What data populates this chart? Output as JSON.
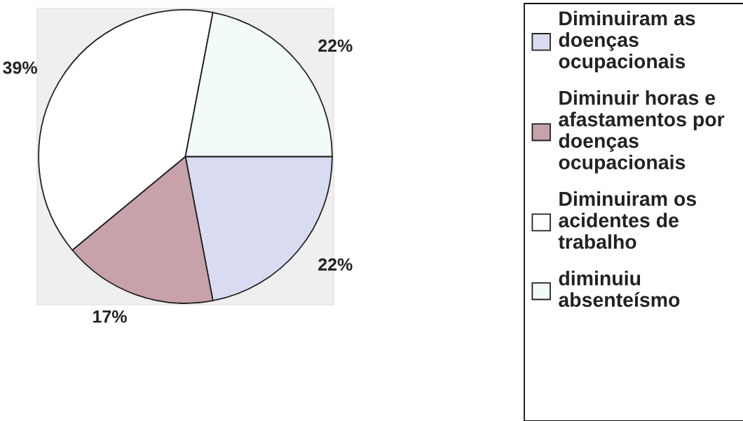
{
  "chart_data": {
    "type": "pie",
    "categories": [
      "Diminuiram as doenças ocupacionais",
      "Diminuir horas e afastamentos por doenças ocupacionais",
      "Diminuiram os acidentes de trabalho",
      "diminuiu absenteísmo"
    ],
    "values": [
      22,
      17,
      39,
      22
    ],
    "colors": [
      "#d9dcf0",
      "#c8a2ab",
      "#ffffff",
      "#f2fafa"
    ],
    "value_labels": [
      "22%",
      "17%",
      "39%",
      "22%"
    ],
    "legend": "right"
  }
}
